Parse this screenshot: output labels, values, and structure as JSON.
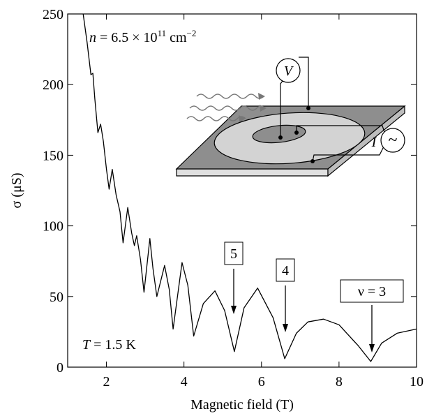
{
  "chart_data": {
    "type": "line",
    "xlabel": "Magnetic field (T)",
    "ylabel": "σ (μS)",
    "density_label": {
      "symbol": "n",
      "text": " = 6.5 × 10",
      "exp": "11",
      "unit": " cm",
      "unit_exp": "−2"
    },
    "temperature_label": {
      "symbol": "T",
      "text": " = 1.5 K"
    },
    "inset_labels": {
      "voltage": "V",
      "current": "I",
      "ac": "~"
    },
    "annotations": [
      "5",
      "4",
      "ν = 3"
    ],
    "color": "#000000",
    "x": [
      1.4,
      1.5,
      1.6,
      1.65,
      1.7,
      1.78,
      1.85,
      1.92,
      2.0,
      2.07,
      2.15,
      2.25,
      2.35,
      2.43,
      2.55,
      2.65,
      2.72,
      2.78,
      2.88,
      2.97,
      3.12,
      3.2,
      3.3,
      3.5,
      3.62,
      3.72,
      3.95,
      4.1,
      4.25,
      4.5,
      4.8,
      5.05,
      5.3,
      5.55,
      5.9,
      6.3,
      6.6,
      6.9,
      7.2,
      7.6,
      8.0,
      8.5,
      8.82,
      9.1,
      9.5,
      10
    ],
    "values": [
      250,
      230,
      207,
      208,
      190,
      166,
      172,
      160,
      140,
      126,
      140,
      122,
      110,
      88,
      113,
      95,
      86,
      93,
      76,
      53,
      91,
      70,
      50,
      72,
      55,
      27,
      74,
      58,
      22,
      45,
      54,
      40,
      11,
      42,
      56,
      35,
      6,
      24,
      32,
      34,
      30,
      15,
      4,
      17,
      24,
      27
    ],
    "xlim": [
      1,
      10
    ],
    "xticks": [
      2,
      4,
      6,
      8,
      10
    ],
    "ylim": [
      0,
      250
    ],
    "yticks": [
      0,
      50,
      100,
      150,
      200,
      250
    ]
  }
}
